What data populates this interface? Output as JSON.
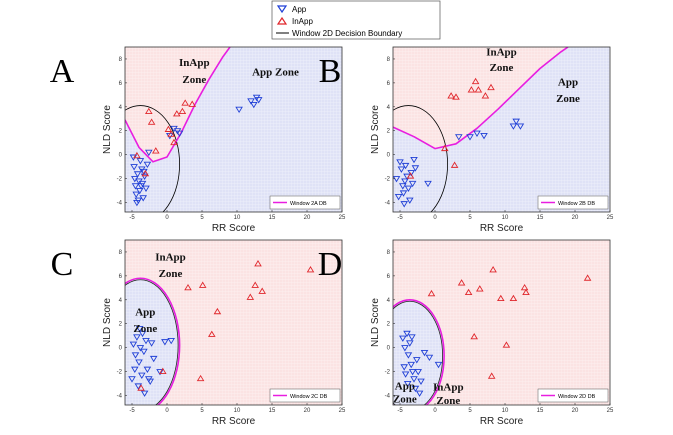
{
  "legend": {
    "app_label": "App",
    "inapp_label": "InApp",
    "boundary_label": "Window 2D Decision Boundary",
    "app_color": "#1f3fd6",
    "inapp_color": "#e0262b",
    "boundary_color": "#000000",
    "db_color": "#e81ee0"
  },
  "chart_data": [
    {
      "type": "scatter",
      "panel": "A",
      "xlabel": "RR Score",
      "ylabel": "NLD Score",
      "xlim": [
        -6,
        25
      ],
      "ylim": [
        -4.8,
        9
      ],
      "xticks": [
        -5,
        0,
        5,
        10,
        15,
        20,
        25
      ],
      "yticks": [
        -4,
        -2,
        0,
        2,
        4,
        6,
        8
      ],
      "legend_label": "Window 2A DB",
      "zone_labels": [
        {
          "text": "InApp",
          "x": 3.9,
          "y": 7.4
        },
        {
          "text": "Zone",
          "x": 3.9,
          "y": 6.0
        },
        {
          "text": "App Zone",
          "x": 15.5,
          "y": 6.6
        }
      ],
      "db_type": "parabola",
      "db_points": [
        [
          -6,
          2.9
        ],
        [
          -4,
          0.6
        ],
        [
          -2,
          -0.6
        ],
        [
          0,
          -0.2
        ],
        [
          2,
          1.8
        ],
        [
          4,
          4.2
        ],
        [
          6,
          6.3
        ],
        [
          8,
          8.2
        ],
        [
          9,
          9
        ]
      ],
      "app_shading": "right",
      "series": [
        {
          "name": "App",
          "points": [
            [
              -4.8,
              -0.2
            ],
            [
              -4.7,
              -1.0
            ],
            [
              -4.6,
              -2.0
            ],
            [
              -4.5,
              -2.6
            ],
            [
              -4.4,
              -3.3
            ],
            [
              -4.3,
              -4.0
            ],
            [
              -4.2,
              -1.6
            ],
            [
              -4.0,
              -2.2
            ],
            [
              -3.9,
              -3.0
            ],
            [
              -3.8,
              -0.5
            ],
            [
              -3.6,
              -1.2
            ],
            [
              -3.5,
              -2.4
            ],
            [
              -3.4,
              -3.6
            ],
            [
              -3.2,
              -1.8
            ],
            [
              -3.0,
              -2.8
            ],
            [
              -2.8,
              -0.8
            ],
            [
              -2.6,
              0.2
            ],
            [
              -4.1,
              -3.8
            ],
            [
              -3.7,
              -2.6
            ],
            [
              -3.3,
              -1.4
            ],
            [
              0.4,
              1.6
            ],
            [
              1.0,
              2.2
            ],
            [
              1.5,
              2.0
            ],
            [
              1.8,
              1.8
            ],
            [
              10.3,
              3.8
            ],
            [
              12.0,
              4.5
            ],
            [
              12.4,
              4.2
            ],
            [
              12.8,
              4.8
            ],
            [
              13.1,
              4.6
            ]
          ]
        },
        {
          "name": "InApp",
          "points": [
            [
              -4.3,
              -0.1
            ],
            [
              -2.6,
              3.6
            ],
            [
              -2.2,
              2.7
            ],
            [
              0.2,
              2.1
            ],
            [
              0.6,
              1.7
            ],
            [
              1.0,
              1.0
            ],
            [
              1.4,
              3.4
            ],
            [
              2.2,
              3.6
            ],
            [
              2.6,
              4.3
            ],
            [
              3.6,
              4.2
            ],
            [
              -1.6,
              0.3
            ],
            [
              -3.1,
              -1.6
            ]
          ]
        }
      ]
    },
    {
      "type": "scatter",
      "panel": "B",
      "xlabel": "RR Score",
      "ylabel": "NLD Score",
      "xlim": [
        -6,
        25
      ],
      "ylim": [
        -4.8,
        9
      ],
      "xticks": [
        -5,
        0,
        5,
        10,
        15,
        20,
        25
      ],
      "yticks": [
        -4,
        -2,
        0,
        2,
        4,
        6,
        8
      ],
      "legend_label": "Window 2B DB",
      "zone_labels": [
        {
          "text": "InApp",
          "x": 9.5,
          "y": 8.3
        },
        {
          "text": "Zone",
          "x": 9.5,
          "y": 7.0
        },
        {
          "text": "App",
          "x": 19.0,
          "y": 5.8
        },
        {
          "text": "Zone",
          "x": 19.0,
          "y": 4.4
        }
      ],
      "db_type": "parabola",
      "db_points": [
        [
          -6,
          2.3
        ],
        [
          -3,
          1.5
        ],
        [
          0,
          0.5
        ],
        [
          3,
          0.9
        ],
        [
          6,
          2.2
        ],
        [
          9,
          3.8
        ],
        [
          12,
          5.5
        ],
        [
          15,
          7.2
        ],
        [
          18,
          8.6
        ],
        [
          19,
          9
        ]
      ],
      "app_shading": "right",
      "series": [
        {
          "name": "App",
          "points": [
            [
              -5.5,
              -2.0
            ],
            [
              -5.0,
              -0.6
            ],
            [
              -4.8,
              -1.2
            ],
            [
              -4.6,
              -2.6
            ],
            [
              -4.5,
              -3.2
            ],
            [
              -4.3,
              -2.2
            ],
            [
              -4.2,
              -0.9
            ],
            [
              -4.0,
              -1.8
            ],
            [
              -3.8,
              -2.8
            ],
            [
              -3.6,
              -3.8
            ],
            [
              -3.4,
              -1.5
            ],
            [
              -3.2,
              -2.4
            ],
            [
              -3.0,
              -0.4
            ],
            [
              -5.2,
              -3.5
            ],
            [
              -2.8,
              -1.1
            ],
            [
              -1.0,
              -2.4
            ],
            [
              -4.4,
              -4.1
            ],
            [
              3.4,
              1.5
            ],
            [
              5.0,
              1.5
            ],
            [
              6.0,
              1.8
            ],
            [
              7.0,
              1.6
            ],
            [
              11.2,
              2.4
            ],
            [
              11.6,
              2.8
            ],
            [
              12.2,
              2.4
            ]
          ]
        },
        {
          "name": "InApp",
          "points": [
            [
              2.3,
              4.9
            ],
            [
              3.0,
              4.8
            ],
            [
              5.2,
              5.4
            ],
            [
              5.8,
              6.1
            ],
            [
              6.2,
              5.4
            ],
            [
              7.2,
              4.9
            ],
            [
              8.0,
              5.6
            ],
            [
              2.8,
              -0.9
            ],
            [
              1.4,
              0.5
            ],
            [
              -3.5,
              -1.8
            ]
          ]
        }
      ]
    },
    {
      "type": "scatter",
      "panel": "C",
      "xlabel": "RR Score",
      "ylabel": "NLD Score",
      "xlim": [
        -6,
        25
      ],
      "ylim": [
        -4.8,
        9
      ],
      "xticks": [
        -5,
        0,
        5,
        10,
        15,
        20,
        25
      ],
      "yticks": [
        -4,
        -2,
        0,
        2,
        4,
        6,
        8
      ],
      "legend_label": "Window 2C DB",
      "zone_labels": [
        {
          "text": "InApp",
          "x": 0.5,
          "y": 7.3
        },
        {
          "text": "Zone",
          "x": 0.5,
          "y": 5.9
        },
        {
          "text": "App",
          "x": -3.1,
          "y": 2.7
        },
        {
          "text": "Zone",
          "x": -3.1,
          "y": 1.3
        }
      ],
      "db_type": "ellipse",
      "db_ellipse": {
        "cx": -3.8,
        "cy": 0.2,
        "rx": 5.6,
        "ry": 5.6
      },
      "app_shading": "ellipse",
      "series": [
        {
          "name": "App",
          "points": [
            [
              -4.8,
              0.3
            ],
            [
              -4.5,
              -0.6
            ],
            [
              -4.3,
              0.9
            ],
            [
              -4.0,
              -1.2
            ],
            [
              -3.8,
              0.0
            ],
            [
              -3.5,
              1.2
            ],
            [
              -3.3,
              -0.3
            ],
            [
              -3.0,
              0.6
            ],
            [
              -2.8,
              -1.8
            ],
            [
              -2.6,
              -2.6
            ],
            [
              -3.6,
              -2.3
            ],
            [
              -4.1,
              -3.2
            ],
            [
              -3.2,
              -3.8
            ],
            [
              -2.4,
              -2.8
            ],
            [
              -4.6,
              -1.8
            ],
            [
              -2.2,
              0.4
            ],
            [
              -1.9,
              -0.9
            ],
            [
              -5.0,
              -2.6
            ],
            [
              -3.9,
              1.6
            ],
            [
              -0.3,
              0.5
            ],
            [
              0.6,
              0.6
            ],
            [
              -1.0,
              -2.0
            ]
          ]
        },
        {
          "name": "InApp",
          "points": [
            [
              3.0,
              5.0
            ],
            [
              5.1,
              5.2
            ],
            [
              7.2,
              3.0
            ],
            [
              6.4,
              1.1
            ],
            [
              4.8,
              -2.6
            ],
            [
              -0.6,
              -2.0
            ],
            [
              -3.7,
              -3.4
            ],
            [
              11.9,
              4.2
            ],
            [
              12.6,
              5.2
            ],
            [
              13.0,
              7.0
            ],
            [
              13.6,
              4.7
            ],
            [
              20.5,
              6.5
            ]
          ]
        }
      ]
    },
    {
      "type": "scatter",
      "panel": "D",
      "xlabel": "RR Score",
      "ylabel": "NLD Score",
      "xlim": [
        -6,
        25
      ],
      "ylim": [
        -4.8,
        9
      ],
      "xticks": [
        -5,
        0,
        5,
        10,
        15,
        20,
        25
      ],
      "yticks": [
        -4,
        -2,
        0,
        2,
        4,
        6,
        8
      ],
      "legend_label": "Window 2D DB",
      "zone_labels": [
        {
          "text": "App",
          "x": -4.3,
          "y": -3.5
        },
        {
          "text": "Zone",
          "x": -4.3,
          "y": -4.6
        },
        {
          "text": "InApp",
          "x": 1.9,
          "y": -3.6
        },
        {
          "text": "Zone",
          "x": 1.9,
          "y": -4.7
        }
      ],
      "db_type": "ellipse",
      "db_ellipse": {
        "cx": -3.6,
        "cy": -0.7,
        "rx": 4.9,
        "ry": 4.7
      },
      "app_shading": "ellipse",
      "series": [
        {
          "name": "App",
          "points": [
            [
              -4.6,
              0.8
            ],
            [
              -4.3,
              0.0
            ],
            [
              -4.0,
              1.2
            ],
            [
              -3.8,
              -0.6
            ],
            [
              -3.6,
              0.4
            ],
            [
              -3.4,
              -1.4
            ],
            [
              -3.2,
              -2.0
            ],
            [
              -3.0,
              -2.6
            ],
            [
              -2.8,
              -3.4
            ],
            [
              -4.2,
              -2.2
            ],
            [
              -3.9,
              -3.0
            ],
            [
              -2.6,
              -1.0
            ],
            [
              -2.4,
              -2.0
            ],
            [
              -2.2,
              -3.8
            ],
            [
              -4.4,
              -1.6
            ],
            [
              -1.5,
              -0.4
            ],
            [
              0.5,
              -1.4
            ],
            [
              -0.8,
              -0.8
            ],
            [
              -3.3,
              0.9
            ],
            [
              -2.0,
              -2.8
            ]
          ]
        },
        {
          "name": "InApp",
          "points": [
            [
              -0.5,
              4.5
            ],
            [
              3.8,
              5.4
            ],
            [
              4.8,
              4.6
            ],
            [
              6.4,
              4.9
            ],
            [
              8.3,
              6.5
            ],
            [
              9.4,
              4.1
            ],
            [
              11.2,
              4.1
            ],
            [
              12.8,
              5.0
            ],
            [
              13.0,
              4.6
            ],
            [
              21.8,
              5.8
            ],
            [
              5.6,
              0.9
            ],
            [
              10.2,
              0.2
            ],
            [
              8.1,
              -2.4
            ]
          ]
        }
      ]
    }
  ]
}
